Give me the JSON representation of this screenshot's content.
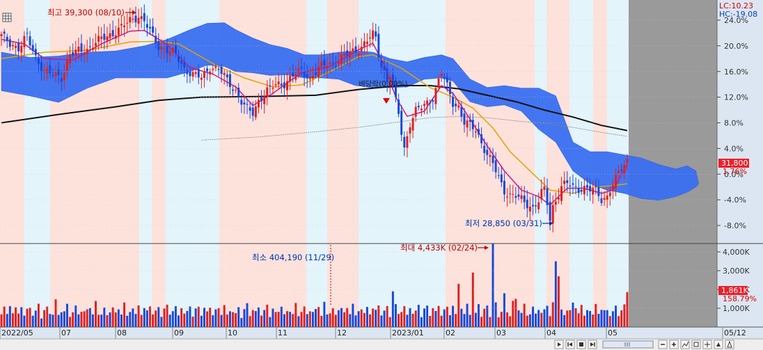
{
  "chart_data": {
    "type": "candlestick",
    "price_axis": {
      "ticks": [
        "24.0%",
        "20.0%",
        "16.0%",
        "12.0%",
        "8.0%",
        "4.0%",
        "0.0%",
        "-4.0%",
        "-8.0%"
      ],
      "range_pct": [
        -9.5,
        25.5
      ]
    },
    "volume_axis": {
      "ticks": [
        "4,000K",
        "3,000K",
        "2,000K",
        "1,000K"
      ],
      "max_k": 4600
    },
    "x_labels": [
      "2022/05",
      "07",
      "08",
      "09",
      "10",
      "11",
      "12",
      "2023/01",
      "02",
      "03",
      "04",
      "05",
      "05/12"
    ],
    "lc_label": "LC:10.23",
    "hc_label": "HC:-19.08",
    "current_price_label": "31,800",
    "current_change_label": "1.76%",
    "current_volume_label": "1,861K",
    "current_volume_change_label": "158.79%",
    "annotations": {
      "high": "최고 39,300 (08/10)",
      "low": "최저 28,850 (03/31)",
      "max_volume": "최대 4,433K (02/24)",
      "min_volume": "최소 404,190 (11/29)",
      "mid_label": "배당락(0.00%)"
    },
    "price_pct_path": [
      [
        0,
        21.5
      ],
      [
        3,
        20.5
      ],
      [
        6,
        19.6
      ],
      [
        9,
        21.4
      ],
      [
        12,
        18.3
      ],
      [
        15,
        16
      ],
      [
        18,
        15.5
      ],
      [
        21,
        15.2
      ],
      [
        24,
        18.5
      ],
      [
        27,
        19.2
      ],
      [
        30,
        19.5
      ],
      [
        33,
        20.5
      ],
      [
        36,
        21.3
      ],
      [
        39,
        22.0
      ],
      [
        42,
        22.8
      ],
      [
        45,
        24.0
      ],
      [
        48,
        24.7
      ],
      [
        50,
        23.8
      ],
      [
        52,
        22.2
      ],
      [
        55,
        20.0
      ],
      [
        58,
        19.3
      ],
      [
        61,
        18.6
      ],
      [
        64,
        16.5
      ],
      [
        67,
        15.5
      ],
      [
        70,
        15.0
      ],
      [
        73,
        16.8
      ],
      [
        76,
        16.3
      ],
      [
        79,
        14.6
      ],
      [
        82,
        13.0
      ],
      [
        84,
        11.3
      ],
      [
        86,
        10.0
      ],
      [
        88,
        9.5
      ],
      [
        90,
        11.5
      ],
      [
        93,
        13.0
      ],
      [
        96,
        13.9
      ],
      [
        99,
        14.2
      ],
      [
        102,
        15.3
      ],
      [
        105,
        16.1
      ],
      [
        108,
        15.0
      ],
      [
        111,
        16.4
      ],
      [
        114,
        17.2
      ],
      [
        117,
        17.4
      ],
      [
        120,
        18.4
      ],
      [
        123,
        19.2
      ],
      [
        126,
        19.8
      ],
      [
        128,
        20.8
      ],
      [
        130,
        21.7
      ],
      [
        131,
        21.2
      ],
      [
        132,
        18.8
      ],
      [
        133,
        17.0
      ],
      [
        134,
        16.0
      ],
      [
        135,
        14.5
      ],
      [
        136,
        15.5
      ],
      [
        137,
        13.8
      ],
      [
        138,
        11.2
      ],
      [
        139,
        9.5
      ],
      [
        140,
        6.5
      ],
      [
        141,
        4.0
      ],
      [
        142,
        6.0
      ],
      [
        143,
        8.0
      ],
      [
        145,
        9.8
      ],
      [
        148,
        10.7
      ],
      [
        151,
        12.0
      ],
      [
        154,
        15.8
      ],
      [
        156,
        13.6
      ],
      [
        158,
        11.2
      ],
      [
        160,
        10.5
      ],
      [
        162,
        8.0
      ],
      [
        164,
        7.5
      ],
      [
        166,
        7.0
      ],
      [
        168,
        5.0
      ],
      [
        170,
        3.0
      ],
      [
        172,
        1.5
      ],
      [
        174,
        -0.5
      ],
      [
        176,
        -2.5
      ],
      [
        178,
        -3.3
      ],
      [
        180,
        -3.5
      ],
      [
        182,
        -4.0
      ],
      [
        184,
        -4.6
      ],
      [
        186,
        -5.2
      ],
      [
        188,
        -4.2
      ],
      [
        189,
        -3.0
      ],
      [
        190,
        -2.5
      ],
      [
        191,
        -4.5
      ],
      [
        192,
        -7.0
      ],
      [
        193,
        -5.0
      ],
      [
        194,
        -4.0
      ],
      [
        196,
        -2.0
      ],
      [
        198,
        -1.5
      ],
      [
        200,
        -2.0
      ],
      [
        202,
        -2.2
      ],
      [
        204,
        -2.2
      ],
      [
        206,
        -2.5
      ],
      [
        208,
        -2.6
      ],
      [
        210,
        -3.8
      ],
      [
        212,
        -3.5
      ],
      [
        213,
        -2.5
      ],
      [
        215,
        -0.8
      ],
      [
        217,
        1.0
      ],
      [
        219,
        2.2
      ]
    ],
    "ma_black": [
      [
        0,
        8.0
      ],
      [
        20,
        9.3
      ],
      [
        40,
        10.5
      ],
      [
        55,
        11.5
      ],
      [
        70,
        12.0
      ],
      [
        90,
        12.1
      ],
      [
        110,
        12.3
      ],
      [
        125,
        13.2
      ],
      [
        140,
        13.8
      ],
      [
        150,
        13.8
      ],
      [
        160,
        13.3
      ],
      [
        170,
        12.3
      ],
      [
        180,
        11.3
      ],
      [
        190,
        10.0
      ],
      [
        200,
        8.9
      ],
      [
        210,
        7.6
      ],
      [
        219,
        6.8
      ]
    ],
    "ma_orange": [
      [
        0,
        18.0
      ],
      [
        15,
        19.0
      ],
      [
        30,
        19.3
      ],
      [
        45,
        20.6
      ],
      [
        55,
        20.7
      ],
      [
        62,
        20.3
      ],
      [
        75,
        17.0
      ],
      [
        85,
        15.0
      ],
      [
        95,
        13.6
      ],
      [
        105,
        13.9
      ],
      [
        115,
        16.0
      ],
      [
        125,
        18.3
      ],
      [
        130,
        18.6
      ],
      [
        140,
        16.5
      ],
      [
        150,
        13.5
      ],
      [
        158,
        12.0
      ],
      [
        165,
        10.3
      ],
      [
        172,
        7.2
      ],
      [
        178,
        3.5
      ],
      [
        185,
        0.5
      ],
      [
        192,
        -2.5
      ],
      [
        200,
        -3.0
      ],
      [
        208,
        -2.0
      ],
      [
        214,
        -1.8
      ],
      [
        219,
        -1.5
      ]
    ],
    "ma_magenta": [
      [
        0,
        21.0
      ],
      [
        8,
        20.3
      ],
      [
        15,
        18.0
      ],
      [
        25,
        17.8
      ],
      [
        35,
        20.3
      ],
      [
        45,
        22.3
      ],
      [
        50,
        22.4
      ],
      [
        58,
        20.2
      ],
      [
        66,
        16.6
      ],
      [
        74,
        15.6
      ],
      [
        82,
        13.6
      ],
      [
        88,
        10.7
      ],
      [
        95,
        12.6
      ],
      [
        105,
        15.8
      ],
      [
        115,
        16.8
      ],
      [
        125,
        19.4
      ],
      [
        130,
        20.4
      ],
      [
        134,
        17.0
      ],
      [
        138,
        12.0
      ],
      [
        142,
        9.0
      ],
      [
        148,
        9.8
      ],
      [
        154,
        13.8
      ],
      [
        158,
        12.6
      ],
      [
        164,
        8.6
      ],
      [
        170,
        4.4
      ],
      [
        176,
        0.5
      ],
      [
        182,
        -2.5
      ],
      [
        188,
        -3.5
      ],
      [
        192,
        -4.8
      ],
      [
        198,
        -2.2
      ],
      [
        204,
        -2.2
      ],
      [
        210,
        -3.0
      ],
      [
        214,
        -2.5
      ],
      [
        219,
        1.5
      ]
    ],
    "ma_gray": [
      [
        70,
        5.3
      ],
      [
        90,
        5.8
      ],
      [
        110,
        6.6
      ],
      [
        125,
        7.3
      ],
      [
        140,
        8.2
      ],
      [
        150,
        8.8
      ],
      [
        160,
        9.0
      ],
      [
        170,
        8.8
      ],
      [
        180,
        8.3
      ],
      [
        190,
        7.9
      ],
      [
        200,
        7.3
      ],
      [
        210,
        6.5
      ],
      [
        219,
        5.9
      ]
    ],
    "cloud_top": [
      [
        0,
        19.0
      ],
      [
        10,
        18.2
      ],
      [
        20,
        18.4
      ],
      [
        30,
        19.0
      ],
      [
        40,
        19.2
      ],
      [
        50,
        20.0
      ],
      [
        58,
        21.0
      ],
      [
        66,
        22.5
      ],
      [
        72,
        23.5
      ],
      [
        78,
        23.6
      ],
      [
        82,
        22.5
      ],
      [
        88,
        21.2
      ],
      [
        94,
        20.2
      ],
      [
        100,
        19.6
      ],
      [
        106,
        18.6
      ],
      [
        112,
        18.6
      ],
      [
        118,
        19.0
      ],
      [
        124,
        19.2
      ],
      [
        130,
        19.0
      ],
      [
        136,
        18.0
      ],
      [
        142,
        17.5
      ],
      [
        148,
        18.2
      ],
      [
        154,
        18.6
      ],
      [
        158,
        18.0
      ],
      [
        164,
        14.8
      ],
      [
        170,
        13.5
      ],
      [
        176,
        13.8
      ],
      [
        182,
        13.4
      ],
      [
        188,
        13.4
      ],
      [
        194,
        12.2
      ],
      [
        200,
        5.0
      ],
      [
        206,
        3.5
      ],
      [
        212,
        3.5
      ],
      [
        218,
        3.0
      ],
      [
        224,
        2.5
      ],
      [
        230,
        1.5
      ],
      [
        236,
        0.8
      ],
      [
        240,
        1.3
      ],
      [
        243,
        0.5
      ],
      [
        244,
        -1.5
      ]
    ],
    "cloud_bottom": [
      [
        0,
        13.0
      ],
      [
        10,
        12.2
      ],
      [
        20,
        11.2
      ],
      [
        30,
        13.4
      ],
      [
        40,
        15.0
      ],
      [
        50,
        15.0
      ],
      [
        58,
        15.0
      ],
      [
        66,
        16.0
      ],
      [
        72,
        17.0
      ],
      [
        78,
        16.8
      ],
      [
        82,
        16.0
      ],
      [
        88,
        15.8
      ],
      [
        94,
        15.4
      ],
      [
        100,
        15.5
      ],
      [
        106,
        15.0
      ],
      [
        112,
        15.0
      ],
      [
        118,
        14.8
      ],
      [
        124,
        13.8
      ],
      [
        130,
        13.5
      ],
      [
        136,
        13.5
      ],
      [
        142,
        13.6
      ],
      [
        148,
        14.8
      ],
      [
        154,
        15.0
      ],
      [
        158,
        14.5
      ],
      [
        164,
        11.3
      ],
      [
        170,
        10.5
      ],
      [
        176,
        10.8
      ],
      [
        182,
        9.8
      ],
      [
        188,
        7.0
      ],
      [
        194,
        5.0
      ],
      [
        200,
        0.5
      ],
      [
        206,
        -1.5
      ],
      [
        212,
        -2.5
      ],
      [
        218,
        -3.0
      ],
      [
        224,
        -3.8
      ],
      [
        230,
        -4.1
      ],
      [
        236,
        -3.5
      ],
      [
        240,
        -2.8
      ],
      [
        243,
        -2.0
      ],
      [
        244,
        -1.5
      ]
    ],
    "volume_k_seed": [
      900,
      1150,
      700,
      1300,
      850,
      1050,
      760,
      1400,
      640,
      980,
      1200,
      700,
      880,
      1320,
      600,
      950,
      1100,
      820,
      760,
      1480,
      690,
      1030,
      880,
      1250,
      640,
      900,
      1150,
      720,
      1060,
      880,
      950,
      1200,
      770,
      1390,
      700,
      860,
      1080,
      640,
      930,
      1190,
      780,
      1010,
      860,
      1360,
      610,
      960,
      1120,
      700,
      1240,
      830,
      1050,
      900,
      1320,
      760,
      880,
      1150,
      690,
      1020,
      1210,
      800,
      950,
      1110,
      670,
      1280,
      740,
      870,
      1330,
      620,
      990,
      1180,
      760,
      1060,
      850,
      1260,
      700,
      940,
      1100,
      810,
      1200,
      680,
      1030,
      880,
      740,
      1160,
      600,
      980,
      1300,
      720,
      1000,
      850,
      1150,
      760,
      930,
      1220,
      660,
      1080,
      800,
      900,
      1340,
      700,
      870,
      1010,
      760,
      1280,
      640,
      990,
      1120,
      710,
      1050,
      880,
      960,
      1190,
      730,
      1370,
      690,
      920,
      1090,
      650,
      1000,
      1230,
      800,
      1040,
      870,
      1350,
      620,
      950,
      1140,
      760,
      1110,
      860,
      1070,
      920,
      1290,
      740,
      890,
      1160,
      680,
      1010,
      1220,
      790,
      960,
      1130,
      680,
      1300,
      760,
      880,
      1340,
      630,
      1000,
      1190,
      770,
      1080,
      860,
      1280,
      720,
      950,
      1130,
      820,
      1210,
      700
    ]
  }
}
